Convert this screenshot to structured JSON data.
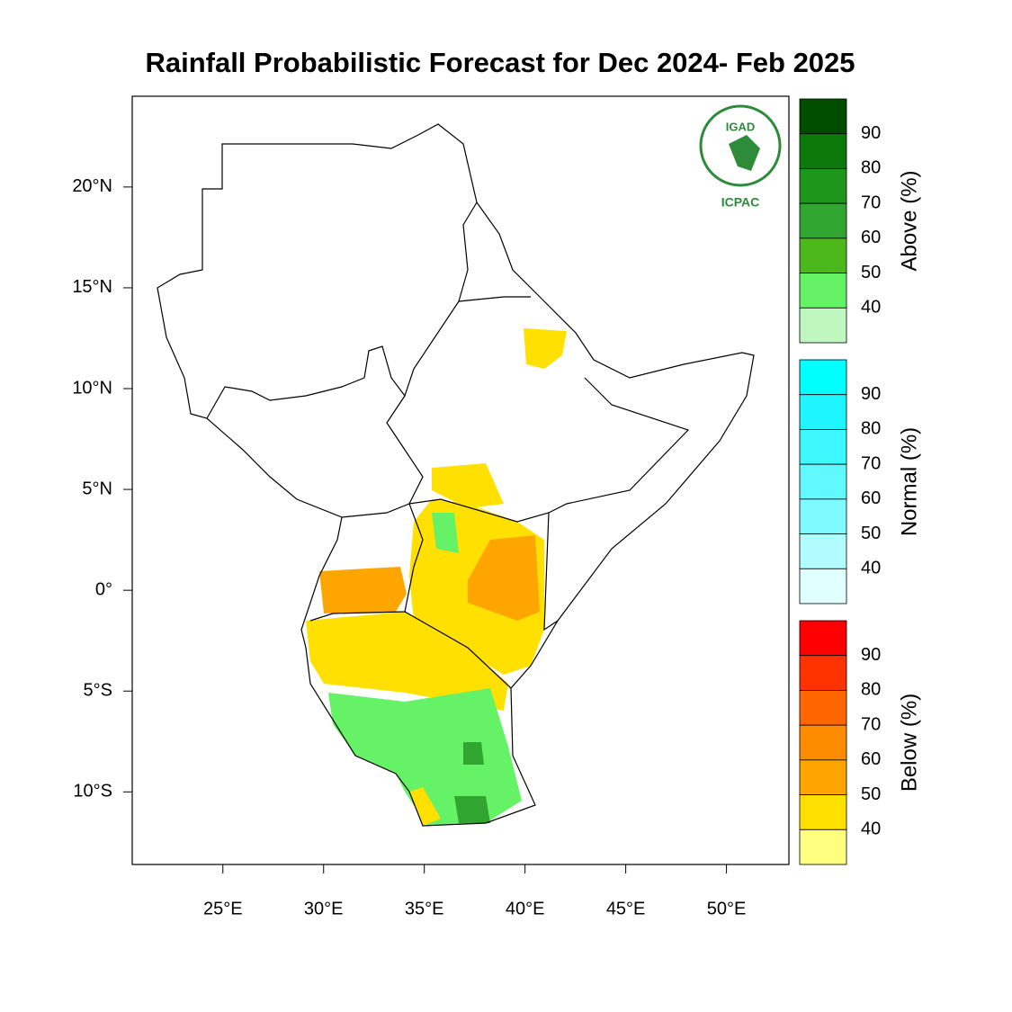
{
  "title": "Rainfall Probabilistic Forecast for Dec 2024- Feb 2025",
  "logo": {
    "top": "IGAD",
    "bottom": "ICPAC"
  },
  "map": {
    "xlim": [
      20.5,
      53.1
    ],
    "ylim": [
      -13.6,
      24.5
    ],
    "xticks": [
      {
        "value": 25,
        "label": "25°E"
      },
      {
        "value": 30,
        "label": "30°E"
      },
      {
        "value": 35,
        "label": "35°E"
      },
      {
        "value": 40,
        "label": "40°E"
      },
      {
        "value": 45,
        "label": "45°E"
      },
      {
        "value": 50,
        "label": "50°E"
      }
    ],
    "yticks": [
      {
        "value": 20,
        "label": "20°N"
      },
      {
        "value": 15,
        "label": "15°N"
      },
      {
        "value": 10,
        "label": "10°N"
      },
      {
        "value": 5,
        "label": "5°N"
      },
      {
        "value": 0,
        "label": "0°"
      },
      {
        "value": -5,
        "label": "5°S"
      },
      {
        "value": -10,
        "label": "10°S"
      }
    ]
  },
  "colorbars": [
    {
      "label": "Above (%)",
      "colors": [
        "#004d00",
        "#0b7a0b",
        "#1e961e",
        "#30a530",
        "#4cb81c",
        "#66f266",
        "#bff7bf"
      ],
      "ticks": [
        90,
        80,
        70,
        60,
        50,
        40
      ]
    },
    {
      "label": "Normal (%)",
      "colors": [
        "#00ffff",
        "#1ff5ff",
        "#3ff8ff",
        "#5ff9ff",
        "#7ffbff",
        "#b0fcff",
        "#e0ffff"
      ],
      "ticks": [
        90,
        80,
        70,
        60,
        50,
        40
      ]
    },
    {
      "label": "Below (%)",
      "colors": [
        "#ff0000",
        "#ff3300",
        "#ff6600",
        "#ff8c00",
        "#ffa500",
        "#ffe000",
        "#ffff80"
      ],
      "ticks": [
        90,
        80,
        70,
        60,
        50,
        40
      ]
    }
  ]
}
